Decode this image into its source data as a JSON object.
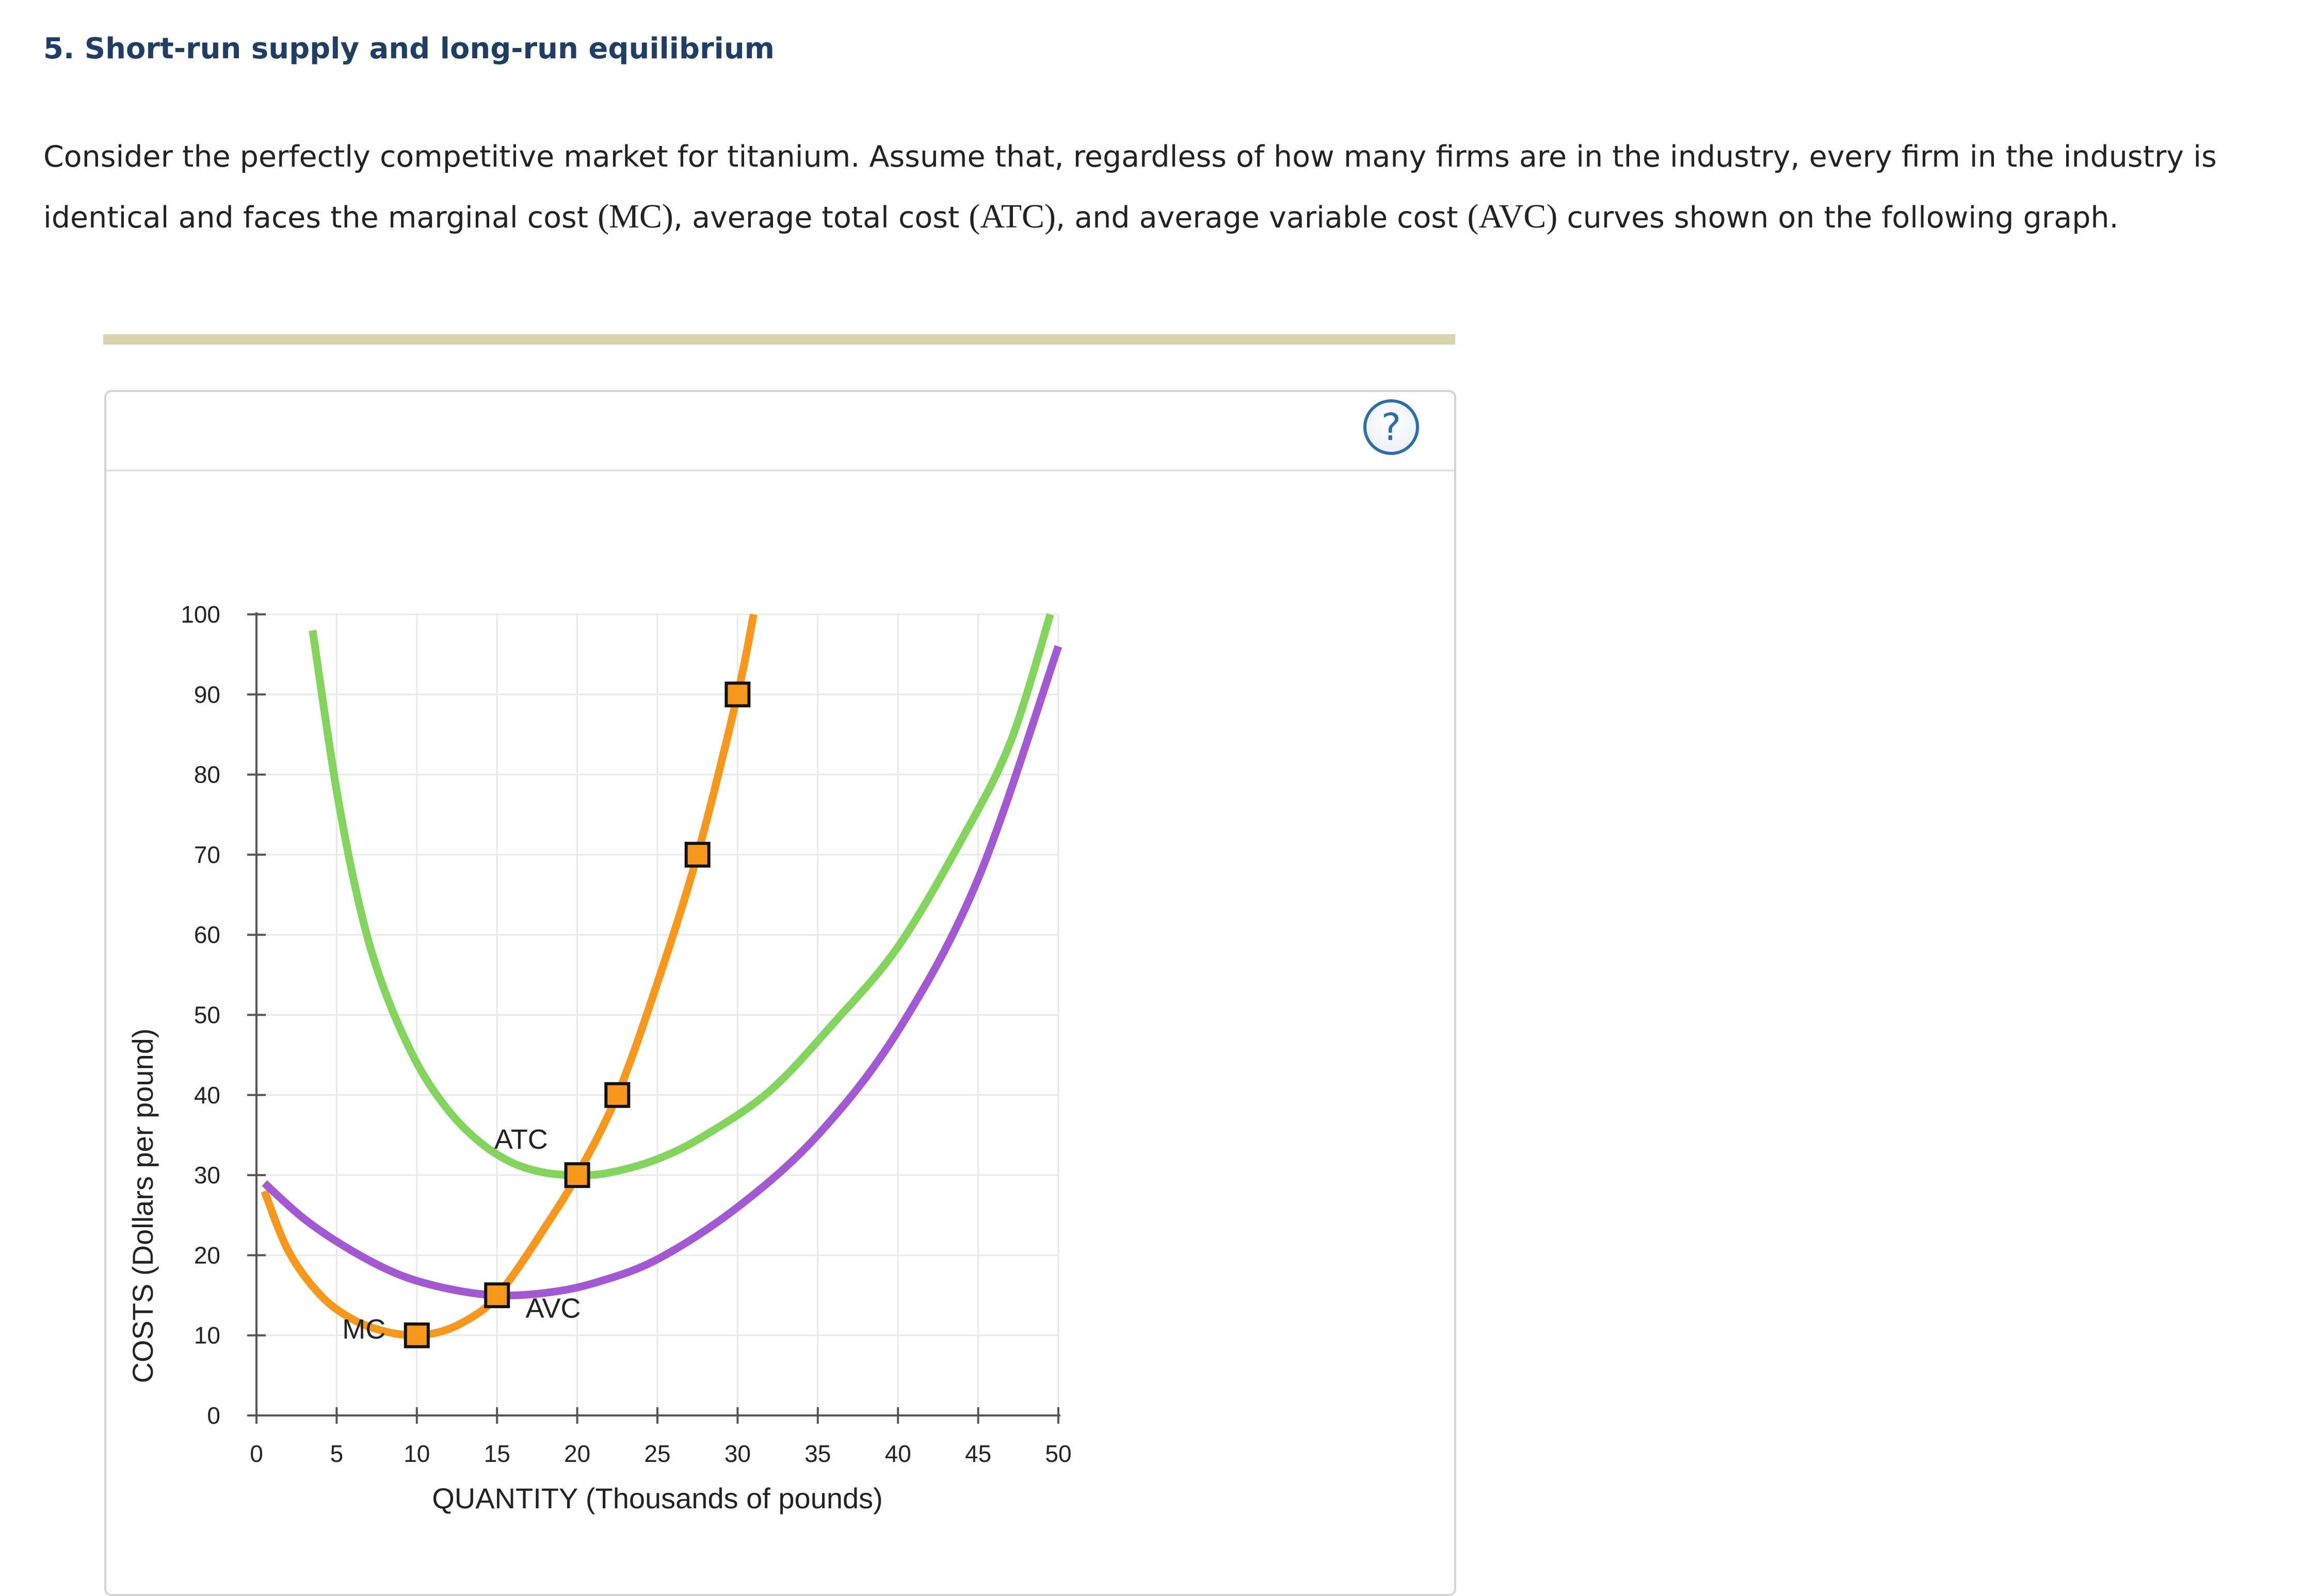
{
  "question": {
    "heading": "5. Short-run supply and long-run equilibrium",
    "intro_parts": [
      "Consider the perfectly competitive market for titanium. Assume that, regardless of how many firms are in the industry, every firm in the industry is identical and faces the marginal cost ",
      "(MC)",
      ", average total cost ",
      "(ATC)",
      ", and average variable cost ",
      "(AVC)",
      " curves shown on the following graph."
    ]
  },
  "help": {
    "symbol": "?"
  },
  "chart_data": {
    "type": "line",
    "xlabel": "QUANTITY (Thousands of pounds)",
    "ylabel": "COSTS (Dollars per pound)",
    "xlim": [
      0,
      50
    ],
    "ylim": [
      0,
      100
    ],
    "x_ticks": [
      0,
      5,
      10,
      15,
      20,
      25,
      30,
      35,
      40,
      45,
      50
    ],
    "y_ticks": [
      0,
      10,
      20,
      30,
      40,
      50,
      60,
      70,
      80,
      90,
      100
    ],
    "grid": true,
    "legend": "none",
    "series": [
      {
        "name": "MC",
        "color": "#f7981d",
        "x": [
          0.5,
          2,
          4,
          6,
          8,
          10,
          12,
          14,
          15,
          16,
          18,
          20,
          22.5,
          25,
          27.5,
          30,
          31
        ],
        "y": [
          28,
          20.5,
          15,
          12,
          10.5,
          10,
          10.8,
          13,
          15,
          17.5,
          23.5,
          30,
          40,
          54,
          70,
          90,
          100
        ],
        "markers": {
          "x": [
            10,
            15,
            20,
            22.5,
            27.5,
            30
          ],
          "y": [
            10,
            15,
            30,
            40,
            70,
            90
          ]
        }
      },
      {
        "name": "ATC",
        "color": "#82d45c",
        "x": [
          3.5,
          5,
          6.5,
          8,
          10,
          12,
          14,
          16,
          18,
          20,
          22,
          25,
          28,
          32,
          36,
          40,
          44,
          47,
          49.5
        ],
        "y": [
          98,
          78,
          63,
          53,
          44,
          38,
          34,
          31.5,
          30.3,
          30,
          30.3,
          32,
          35,
          40.5,
          49,
          58.5,
          72,
          84,
          100
        ]
      },
      {
        "name": "AVC",
        "color": "#a259d3",
        "x": [
          0.5,
          3,
          6,
          9,
          12,
          15,
          18,
          21,
          25,
          30,
          35,
          40,
          45,
          50
        ],
        "y": [
          29,
          24.5,
          20.5,
          17.5,
          15.8,
          15,
          15.3,
          16.5,
          19.5,
          26,
          35,
          48,
          67,
          96
        ]
      }
    ],
    "annotations": [
      {
        "text": "MC",
        "x": 6.7,
        "y": 9.6
      },
      {
        "text": "ATC",
        "x": 16.5,
        "y": 33.3
      },
      {
        "text": "AVC",
        "x": 18.5,
        "y": 12.2
      }
    ]
  }
}
